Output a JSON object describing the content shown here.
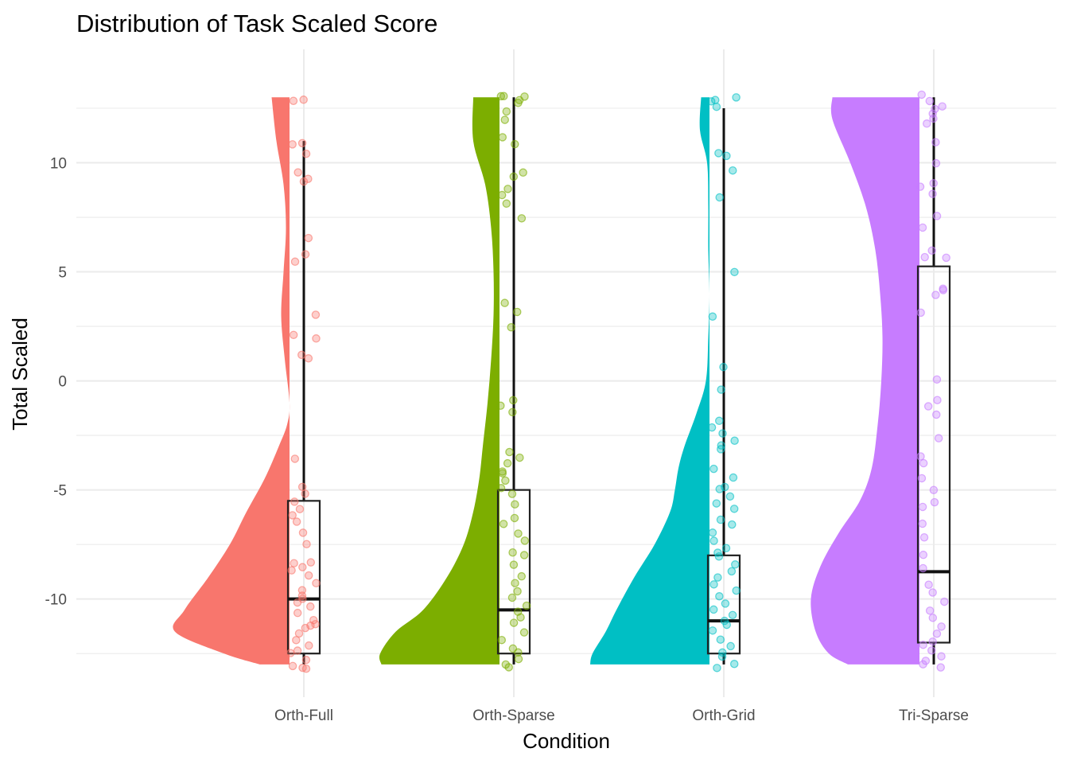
{
  "chart_data": {
    "type": "raincloud",
    "title": "Distribution of Task Scaled Score",
    "xlabel": "Condition",
    "ylabel": "Total Scaled",
    "ylim": [
      -14.5,
      15.2
    ],
    "yticks": [
      -10,
      -5,
      0,
      5,
      10
    ],
    "yminor": [
      -12.5,
      -7.5,
      -2.5,
      2.5,
      7.5,
      12.5
    ],
    "grid": true,
    "legend": "none",
    "categories": [
      "Orth-Full",
      "Orth-Sparse",
      "Orth-Grid",
      "Tri-Sparse"
    ],
    "groups": [
      {
        "name": "Orth-Full",
        "color": "#f8766d",
        "box": {
          "q1": -12.5,
          "median": -10,
          "q3": -5.5,
          "whisker_low": -13,
          "whisker_high": 11
        },
        "density": {
          "y": [
            -13,
            -12.5,
            -11.5,
            -10.5,
            -9,
            -7.5,
            -6,
            -4.5,
            -3,
            -2,
            -1,
            1,
            3,
            5,
            7,
            9,
            11,
            13
          ],
          "w": [
            0.25,
            0.55,
            0.96,
            0.88,
            0.68,
            0.5,
            0.36,
            0.21,
            0.09,
            0.02,
            0,
            0.04,
            0.07,
            0.05,
            0.03,
            0.05,
            0.11,
            0.15
          ]
        },
        "points": [
          12.9,
          12.8,
          10.9,
          10.9,
          10.4,
          9.6,
          9.2,
          9.1,
          6.5,
          5.8,
          5.4,
          3.1,
          2.1,
          1.9,
          1.2,
          1.0,
          -3.5,
          -4.9,
          -5.2,
          -5.5,
          -5.9,
          -6.1,
          -6.4,
          -7.0,
          -7.5,
          -8.3,
          -8.4,
          -8.6,
          -8.7,
          -8.9,
          -9.3,
          -9.6,
          -9.8,
          -10.0,
          -10.2,
          -10.4,
          -10.6,
          -10.9,
          -11.1,
          -11.2,
          -11.4,
          -11.6,
          -11.9,
          -12.1,
          -12.3,
          -12.5,
          -12.8,
          -13.0,
          -13.1,
          -13.2
        ]
      },
      {
        "name": "Orth-Sparse",
        "color": "#7cae00",
        "box": {
          "q1": -12.5,
          "median": -10.5,
          "q3": -5,
          "whisker_low": -13,
          "whisker_high": 13
        },
        "density": {
          "y": [
            -13,
            -12.5,
            -11.5,
            -10.5,
            -9,
            -7.5,
            -6,
            -4.5,
            -3,
            -1,
            1,
            3,
            5,
            7,
            9,
            11,
            13
          ],
          "w": [
            0.99,
            1.0,
            0.87,
            0.64,
            0.44,
            0.3,
            0.22,
            0.17,
            0.14,
            0.1,
            0.07,
            0.05,
            0.05,
            0.07,
            0.12,
            0.22,
            0.22
          ]
        },
        "points": [
          13.1,
          13.0,
          13.0,
          12.9,
          12.8,
          12.4,
          11.9,
          11.1,
          10.9,
          9.5,
          9.3,
          8.8,
          8.5,
          8.1,
          7.4,
          3.5,
          3.1,
          2.4,
          -0.9,
          -1.1,
          -1.4,
          -3.2,
          -3.5,
          -3.8,
          -4.1,
          -4.3,
          -4.6,
          -4.9,
          -5.2,
          -5.6,
          -6.3,
          -6.5,
          -7.0,
          -7.3,
          -7.8,
          -8.0,
          -8.4,
          -8.9,
          -9.2,
          -9.6,
          -10.0,
          -10.3,
          -10.6,
          -10.8,
          -11.1,
          -11.5,
          -11.9,
          -12.2,
          -12.5,
          -12.8,
          -13.0,
          -13.2
        ]
      },
      {
        "name": "Orth-Grid",
        "color": "#00bfc4",
        "box": {
          "q1": -12.5,
          "median": -11,
          "q3": -8,
          "whisker_low": -13,
          "whisker_high": 12.5
        },
        "density": {
          "y": [
            -13,
            -12.5,
            -11.5,
            -10.5,
            -9,
            -7.5,
            -6,
            -5,
            -4,
            -3,
            -1.5,
            0,
            2,
            4,
            6,
            8,
            10,
            11.5,
            13
          ],
          "w": [
            1.0,
            0.98,
            0.87,
            0.78,
            0.63,
            0.46,
            0.33,
            0.29,
            0.26,
            0.21,
            0.11,
            0.03,
            0.01,
            0.0,
            0.01,
            0.01,
            0.02,
            0.08,
            0.07
          ]
        },
        "points": [
          13.0,
          12.8,
          12.9,
          12.6,
          10.5,
          10.3,
          9.6,
          8.4,
          5.0,
          2.9,
          0.6,
          -0.4,
          -1.9,
          -2.1,
          -2.4,
          -2.8,
          -3.0,
          -3.2,
          -4.0,
          -4.5,
          -4.9,
          -5.0,
          -5.3,
          -5.6,
          -5.8,
          -6.3,
          -6.6,
          -7.0,
          -7.3,
          -7.6,
          -7.9,
          -8.1,
          -8.4,
          -8.7,
          -9.0,
          -9.3,
          -9.6,
          -9.9,
          -10.2,
          -10.5,
          -10.7,
          -11.0,
          -11.2,
          -11.5,
          -11.8,
          -12.1,
          -12.4,
          -12.7,
          -13.0,
          -13.2
        ]
      },
      {
        "name": "Tri-Sparse",
        "color": "#c77cff",
        "box": {
          "q1": -12,
          "median": -8.75,
          "q3": 5.25,
          "whisker_low": -13,
          "whisker_high": 13
        },
        "density": {
          "y": [
            -13,
            -12.5,
            -11.5,
            -10,
            -8.5,
            -7,
            -5.5,
            -4,
            -2,
            0,
            2,
            4,
            6,
            8,
            10,
            12,
            13
          ],
          "w": [
            0.6,
            0.76,
            0.87,
            0.91,
            0.83,
            0.68,
            0.5,
            0.4,
            0.35,
            0.32,
            0.31,
            0.33,
            0.37,
            0.45,
            0.58,
            0.73,
            0.73
          ]
        },
        "points": [
          13.1,
          12.9,
          12.6,
          12.4,
          12.2,
          12.0,
          11.8,
          10.9,
          10.0,
          9.0,
          8.9,
          8.5,
          7.5,
          7.0,
          6.0,
          5.7,
          5.6,
          4.3,
          4.2,
          4.0,
          3.1,
          0.0,
          -0.9,
          -1.1,
          -1.6,
          -2.6,
          -3.5,
          -3.8,
          -4.5,
          -5.0,
          -5.5,
          -5.8,
          -6.6,
          -7.2,
          -8.0,
          -8.6,
          -9.3,
          -9.7,
          -10.1,
          -10.5,
          -10.9,
          -11.3,
          -11.6,
          -11.9,
          -12.1,
          -12.4,
          -12.6,
          -12.8,
          -13.0,
          -13.2
        ]
      }
    ]
  }
}
